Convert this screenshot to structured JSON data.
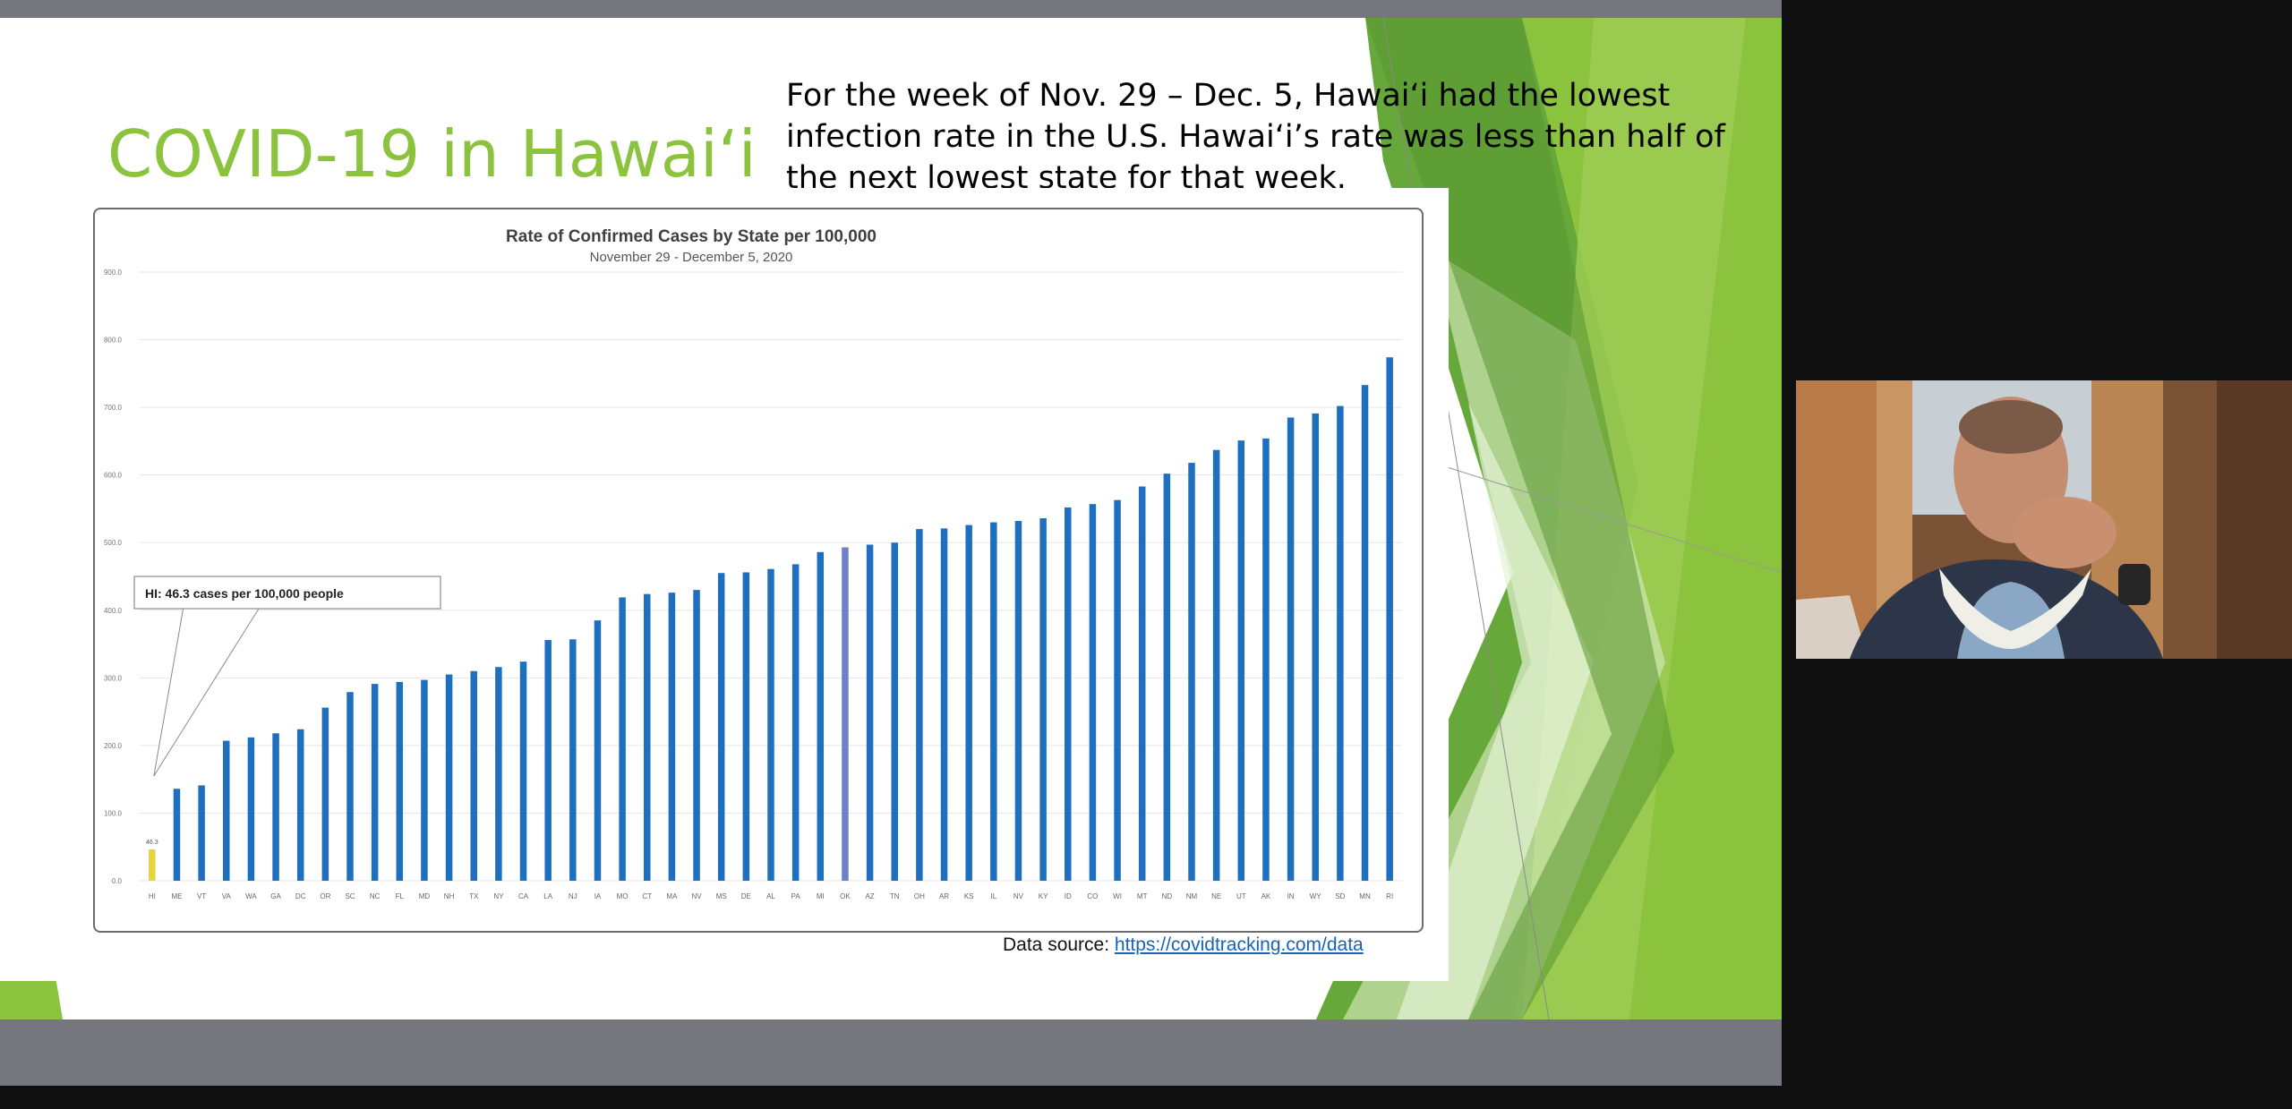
{
  "slide": {
    "title": "COVID-19 in Hawai‘i",
    "body": "For the week of Nov. 29 – Dec. 5, Hawai‘i had the lowest infection rate in the U.S. Hawai‘i’s rate was less than half of the next lowest state for that week.",
    "source_label": "Data source:",
    "source_link": "https://covidtracking.com/data"
  },
  "colors": {
    "title": "#8bc33f",
    "bar": "#1f6fc0",
    "highlight_hawaii": "#e6d43c",
    "highlight_other": "#6f7fc8",
    "accent_green": "#8bc33f"
  },
  "chart_data": {
    "type": "bar",
    "title": "Rate of Confirmed Cases by State per 100,000",
    "subtitle": "November 29 - December 5, 2020",
    "xlabel": "",
    "ylabel": "",
    "ylim": [
      0,
      900
    ],
    "yticks": [
      "0.0",
      "100.0",
      "200.0",
      "300.0",
      "400.0",
      "500.0",
      "600.0",
      "700.0",
      "800.0",
      "900.0"
    ],
    "grid": true,
    "categories": [
      "HI",
      "ME",
      "VT",
      "VA",
      "WA",
      "GA",
      "DC",
      "OR",
      "SC",
      "NC",
      "FL",
      "MD",
      "NH",
      "TX",
      "NY",
      "CA",
      "LA",
      "NJ",
      "IA",
      "MO",
      "CT",
      "MA",
      "NV",
      "MS",
      "DE",
      "AL",
      "PA",
      "MI",
      "OK",
      "AZ",
      "TN",
      "OH",
      "AR",
      "KS",
      "IL",
      "NV",
      "KY",
      "ID",
      "CO",
      "WI",
      "MT",
      "ND",
      "NM",
      "NE",
      "UT",
      "AK",
      "IN",
      "WY",
      "SD",
      "MN",
      "RI"
    ],
    "values": [
      46.3,
      136,
      141,
      207,
      212,
      218,
      224,
      256,
      279,
      291,
      294,
      297,
      305,
      310,
      316,
      324,
      356,
      357,
      385,
      419,
      424,
      426,
      430,
      455,
      456,
      461,
      468,
      486,
      493,
      497,
      500,
      520,
      521,
      526,
      530,
      532,
      536,
      552,
      557,
      563,
      583,
      602,
      618,
      637,
      651,
      654,
      685,
      691,
      702,
      733,
      774
    ],
    "highlight_index_hawaii": 0,
    "highlight_index_other": 28,
    "data_labels": [
      "46.3"
    ],
    "annotation": "HI: 46.3 cases per 100,000 people"
  }
}
